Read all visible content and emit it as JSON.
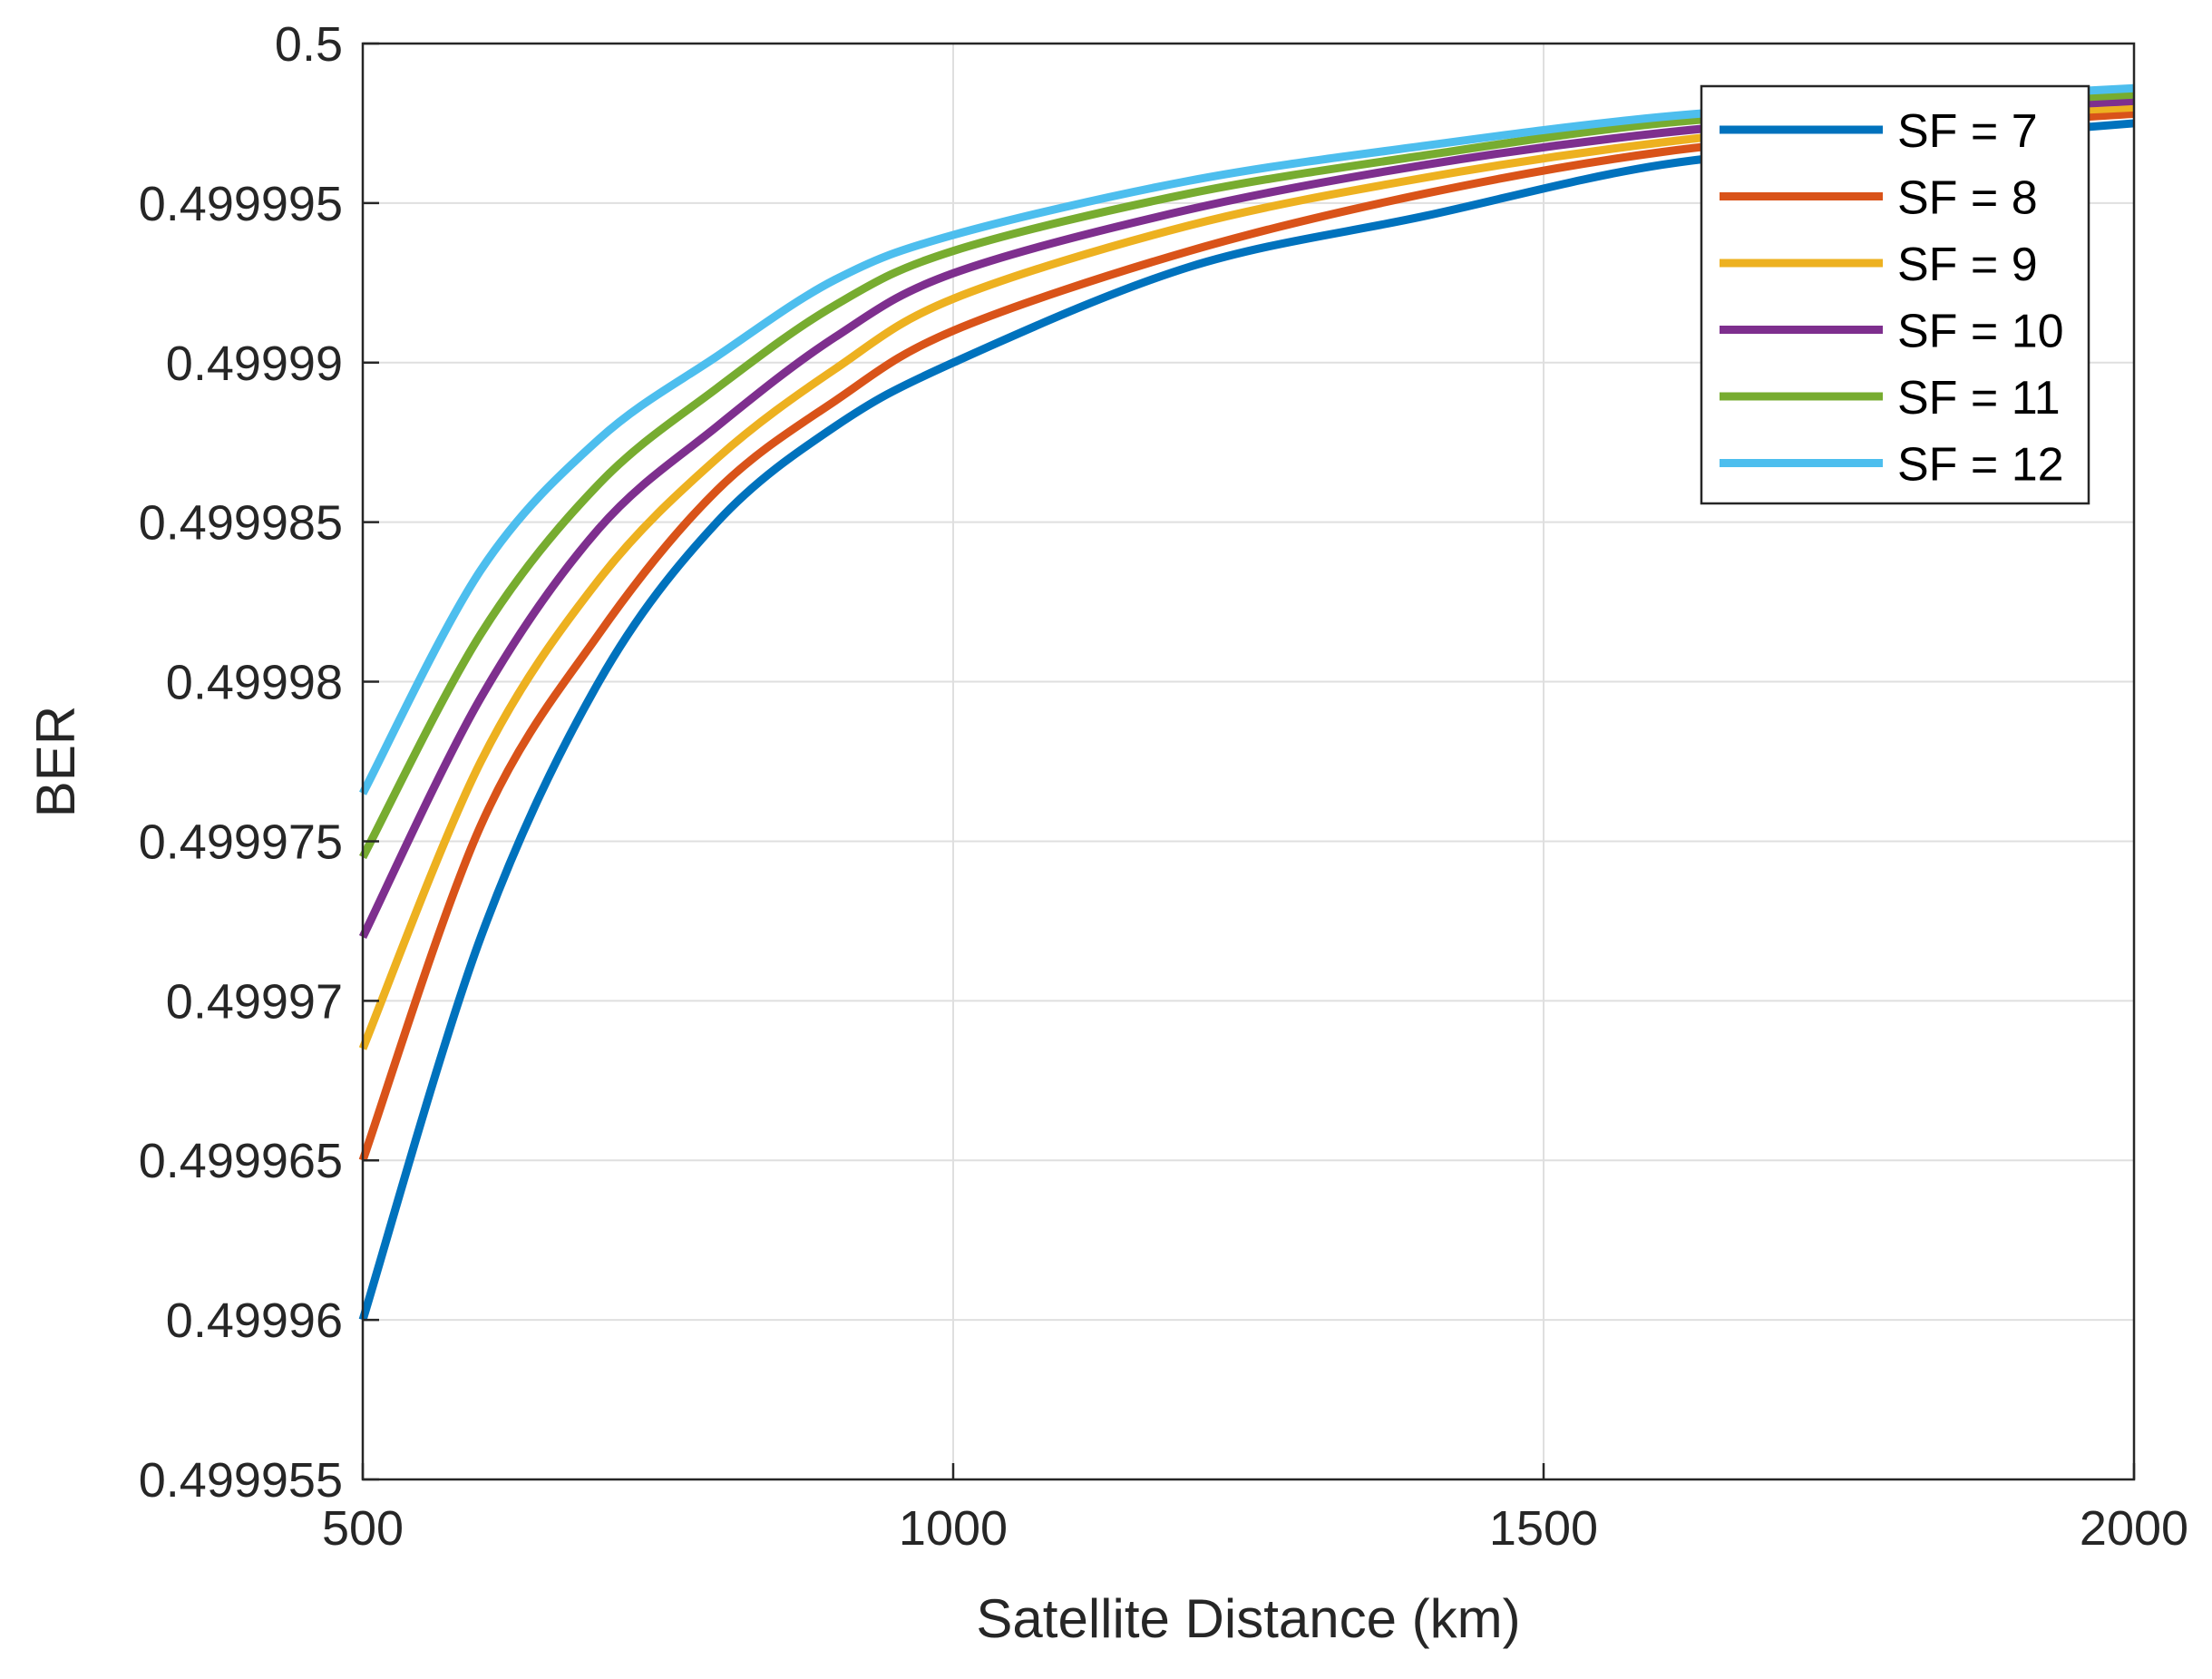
{
  "chart_data": {
    "type": "line",
    "title": "",
    "xlabel": "Satellite Distance (km)",
    "ylabel": "BER",
    "xlim": [
      500,
      2000
    ],
    "ylim": [
      0.499955,
      0.5
    ],
    "xticks": [
      500,
      1000,
      1500,
      2000
    ],
    "xtick_labels": [
      "500",
      "1000",
      "1500",
      "2000"
    ],
    "yticks": [
      0.499955,
      0.49996,
      0.499965,
      0.49997,
      0.499975,
      0.49998,
      0.499985,
      0.49999,
      0.499995,
      0.5
    ],
    "ytick_labels": [
      "0.499955",
      "0.49996",
      "0.499965",
      "0.49997",
      "0.499975",
      "0.49998",
      "0.499985",
      "0.49999",
      "0.499995",
      "0.5"
    ],
    "grid": true,
    "legend_position": "top-right",
    "x": [
      500,
      600,
      700,
      800,
      900,
      1000,
      1200,
      1400,
      1600,
      1800,
      2000
    ],
    "series": [
      {
        "name": "SF = 7",
        "color": "#0072BD",
        "values": [
          0.49996,
          0.499972,
          0.49998,
          0.499985,
          0.499988,
          0.49999,
          0.499993,
          0.4999946,
          0.4999962,
          0.4999969,
          0.4999975
        ]
      },
      {
        "name": "SF = 8",
        "color": "#D95319",
        "values": [
          0.499965,
          0.4999755,
          0.4999815,
          0.499986,
          0.4999888,
          0.499991,
          0.4999935,
          0.4999953,
          0.4999966,
          0.4999973,
          0.4999978
        ]
      },
      {
        "name": "SF = 9",
        "color": "#EDB120",
        "values": [
          0.4999685,
          0.4999775,
          0.4999832,
          0.499987,
          0.4999898,
          0.499992,
          0.4999943,
          0.4999958,
          0.4999969,
          0.4999976,
          0.499998
        ]
      },
      {
        "name": "SF = 10",
        "color": "#7E2F8E",
        "values": [
          0.499972,
          0.4999795,
          0.4999848,
          0.499988,
          0.4999908,
          0.4999928,
          0.4999948,
          0.4999962,
          0.4999972,
          0.4999978,
          0.4999982
        ]
      },
      {
        "name": "SF = 11",
        "color": "#77AC30",
        "values": [
          0.4999745,
          0.4999815,
          0.4999862,
          0.4999892,
          0.4999918,
          0.4999935,
          0.4999953,
          0.4999965,
          0.4999975,
          0.499998,
          0.4999984
        ]
      },
      {
        "name": "SF = 12",
        "color": "#4DBEEE",
        "values": [
          0.4999765,
          0.4999835,
          0.4999876,
          0.4999902,
          0.4999926,
          0.499994,
          0.4999957,
          0.4999968,
          0.4999977,
          0.4999982,
          0.4999986
        ]
      }
    ]
  }
}
